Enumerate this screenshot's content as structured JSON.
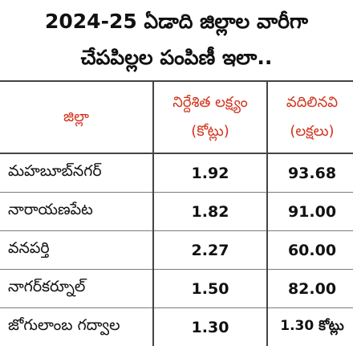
{
  "title_line1": "2024-25 ఏడాది జిల్లాల వారీగా",
  "title_line2": "చేపపిల్లల పంపిణీ ఇలా..",
  "table": {
    "headers": {
      "district": "జిల్లా",
      "target_line1": "నిర్దేశిత లక్ష్యం",
      "target_line2": "(కోట్లు)",
      "released_line1": "వదిలినవి",
      "released_line2": "(లక్షలు)"
    },
    "rows": [
      {
        "district": "మహబూబ్‌నగర్",
        "target": "1.92",
        "released": "93.68"
      },
      {
        "district": "నారాయణపేట",
        "target": "1.82",
        "released": "91.00"
      },
      {
        "district": "వనపర్తి",
        "target": "2.27",
        "released": "60.00"
      },
      {
        "district": "నాగర్‌కర్నూల్",
        "target": "1.50",
        "released": "82.00"
      },
      {
        "district": "జోగులాంబ గద్వాల",
        "target": "1.30",
        "released": "1.30 కోట్లు"
      }
    ]
  }
}
